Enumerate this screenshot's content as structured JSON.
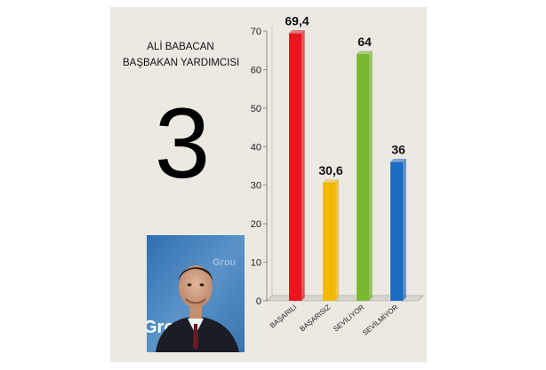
{
  "caption": {
    "line1": "ALİ BABACAN",
    "line2": "BAŞBAKAN YARDIMCISI"
  },
  "rank_number": "3",
  "photo": {
    "backdrop_text": "Grou",
    "backdrop_text2": "Grou",
    "icon": "portrait-photo"
  },
  "chart_data": {
    "type": "bar",
    "categories": [
      "BAŞARILI",
      "BAŞARISIZ",
      "SEVİLİYOR",
      "SEVİLMİYOR"
    ],
    "values": [
      69.4,
      30.6,
      64,
      36
    ],
    "value_labels": [
      "69,4",
      "30,6",
      "64",
      "36"
    ],
    "colors": [
      "#e8171d",
      "#f5b800",
      "#78b92e",
      "#1c6cc4"
    ],
    "ylim": [
      0,
      70
    ],
    "yticks": [
      "0",
      "10",
      "20",
      "30",
      "40",
      "50",
      "60",
      "70"
    ],
    "grid": false,
    "legend": "none"
  }
}
